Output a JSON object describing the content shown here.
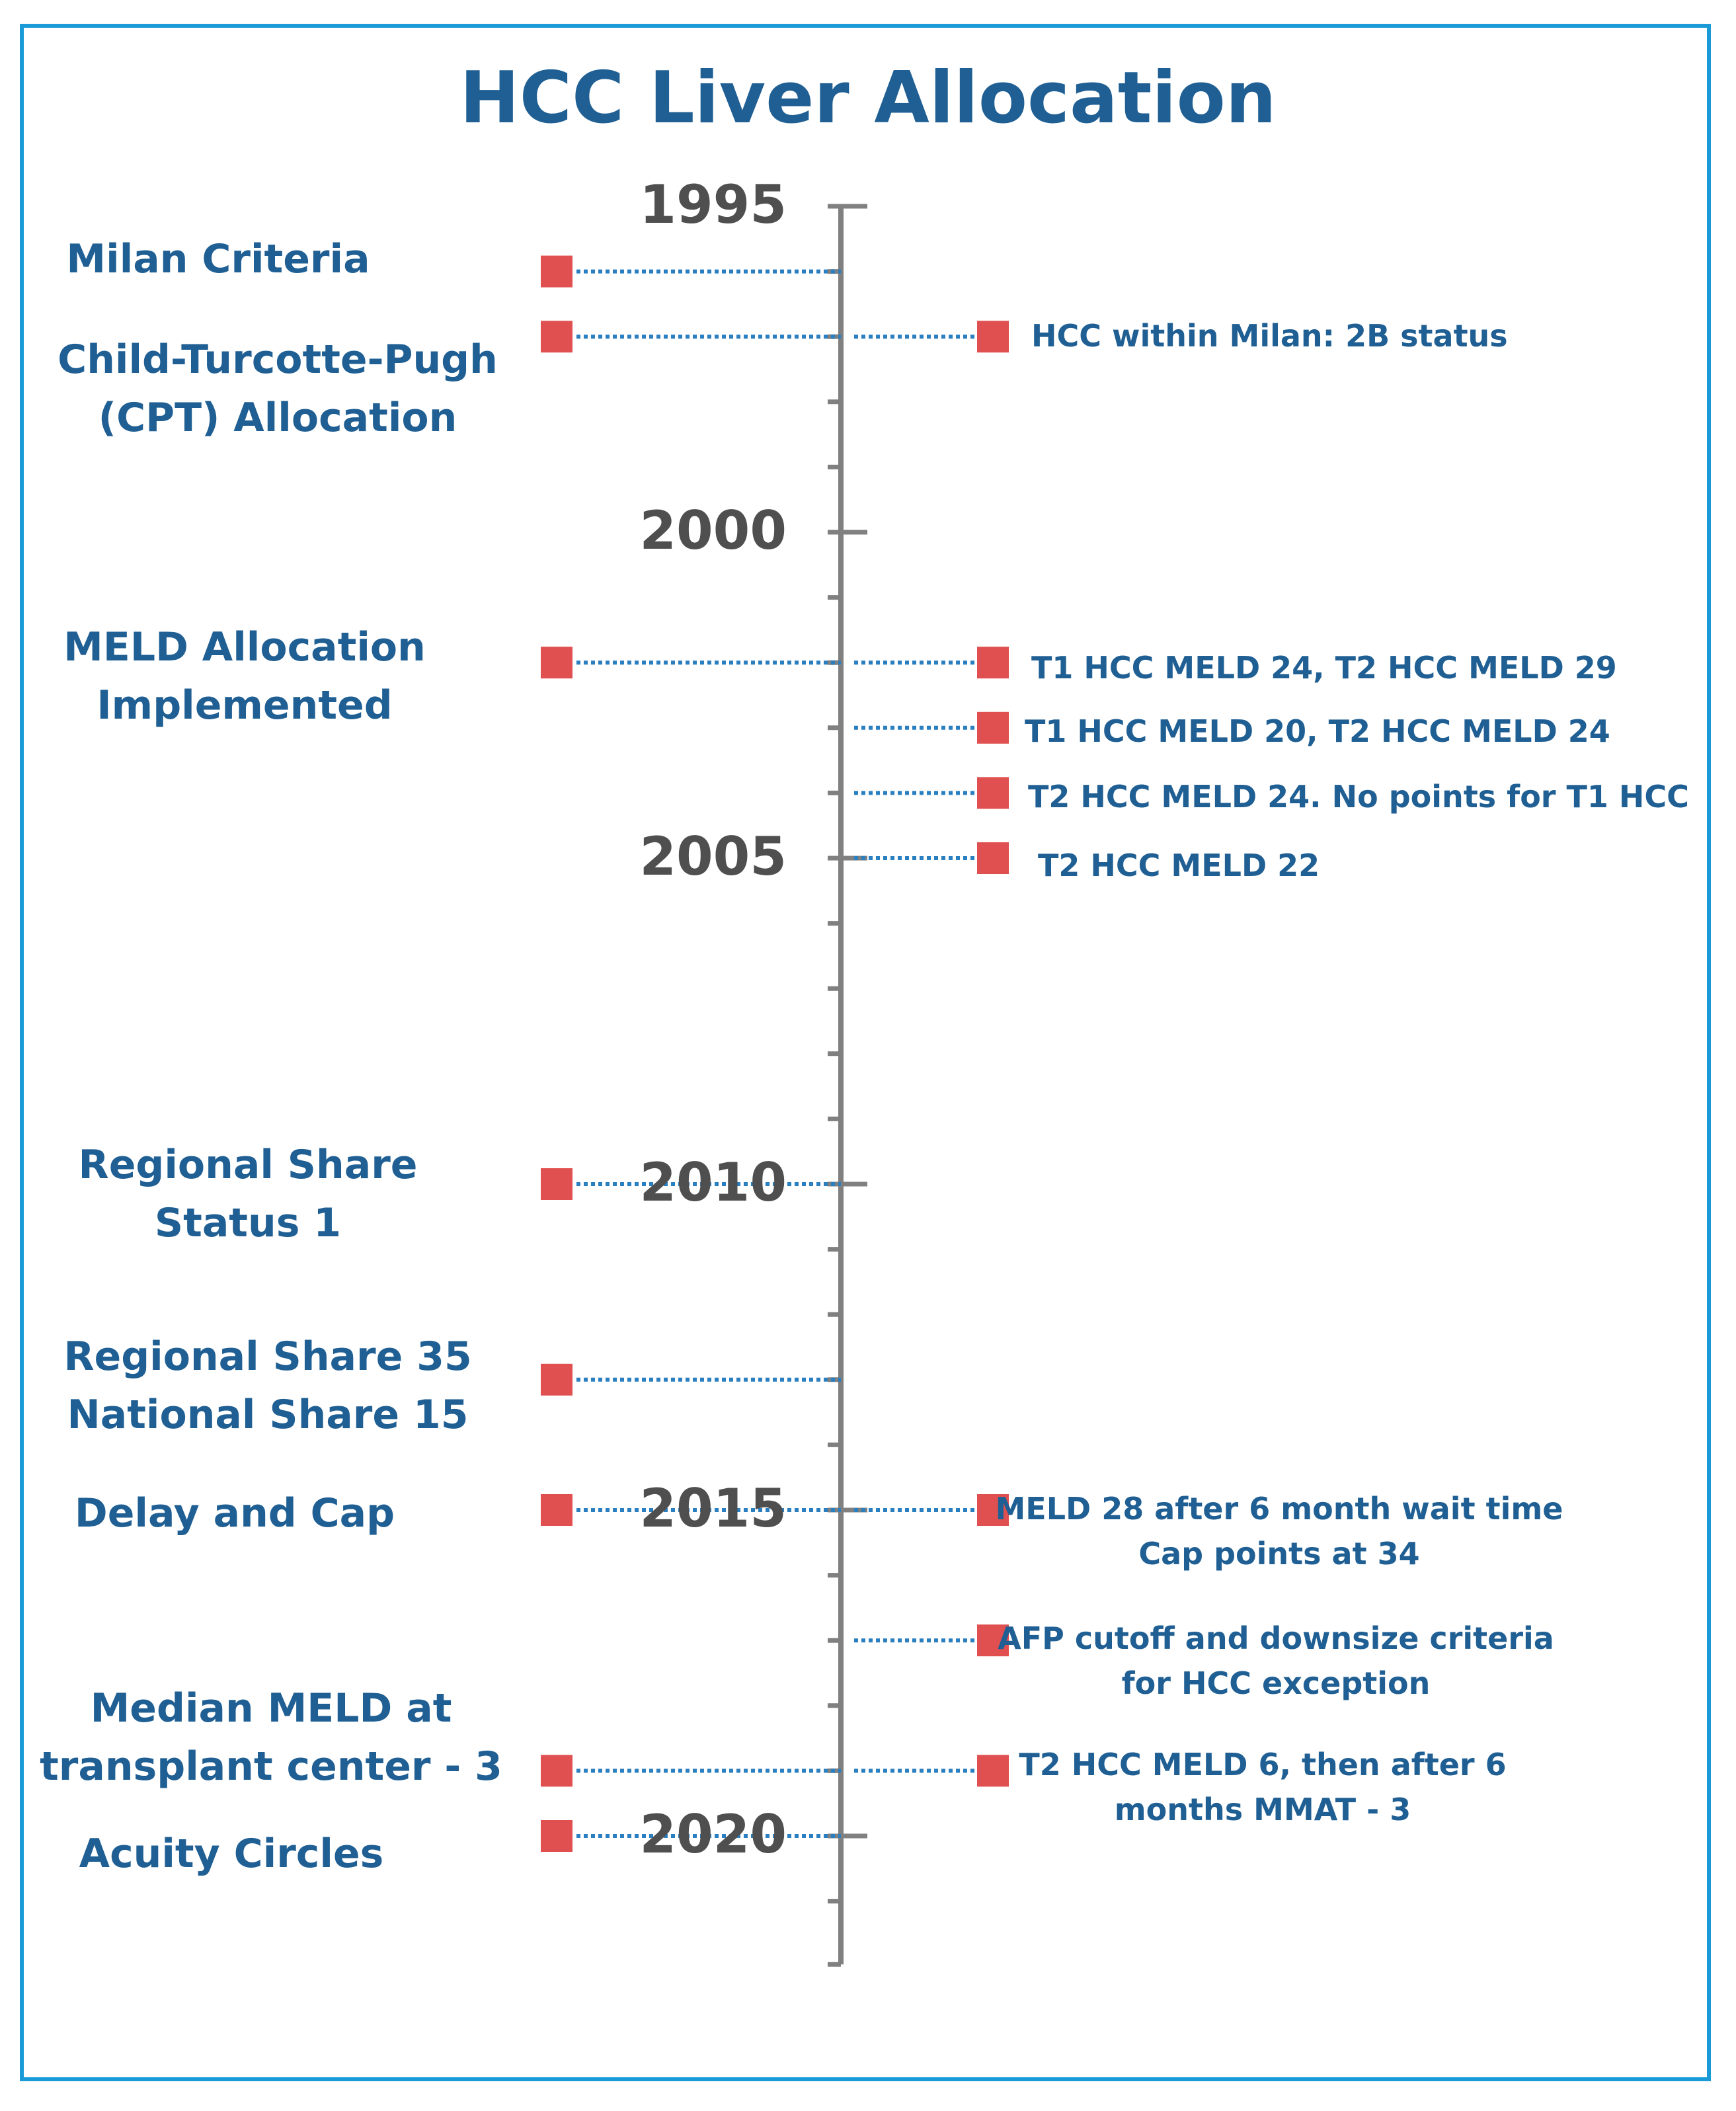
{
  "title": "HCC Liver Allocation",
  "colors": {
    "border": "#1a9bd7",
    "text": "#1f5f93",
    "axis": "#808080",
    "year": "#4f4f4f",
    "marker": "#e05050",
    "dots": "#2a7fc0"
  },
  "axis": {
    "start_year": 1995,
    "end_year": 2021.97,
    "labeled_years": [
      "1995",
      "2000",
      "2005",
      "2010",
      "2015",
      "2020"
    ]
  },
  "left_events": [
    {
      "year": 1996.0,
      "lines": [
        "Milan Criteria"
      ]
    },
    {
      "year": 1997.0,
      "lines": [
        "Child-Turcotte-Pugh",
        "(CPT) Allocation"
      ]
    },
    {
      "year": 2002.0,
      "lines": [
        "MELD Allocation",
        "Implemented"
      ]
    },
    {
      "year": 2010.0,
      "lines": [
        "Regional Share",
        "Status 1"
      ]
    },
    {
      "year": 2013.0,
      "lines": [
        "Regional Share 35",
        "National Share 15"
      ]
    },
    {
      "year": 2015.0,
      "lines": [
        "Delay and Cap"
      ]
    },
    {
      "year": 2019.0,
      "lines": [
        "Median MELD at",
        "transplant center - 3"
      ]
    },
    {
      "year": 2020.0,
      "lines": [
        "Acuity Circles"
      ]
    }
  ],
  "right_events": [
    {
      "year": 1997.0,
      "lines": [
        "HCC within Milan: 2B status"
      ]
    },
    {
      "year": 2002.0,
      "lines": [
        "T1 HCC MELD 24, T2 HCC MELD 29"
      ]
    },
    {
      "year": 2003.0,
      "lines": [
        "T1 HCC MELD 20, T2 HCC MELD 24"
      ]
    },
    {
      "year": 2004.0,
      "lines": [
        "T2 HCC MELD 24. No points for T1 HCC"
      ]
    },
    {
      "year": 2005.0,
      "lines": [
        "T2 HCC MELD 22"
      ]
    },
    {
      "year": 2015.0,
      "lines": [
        "MELD 28 after 6 month wait time",
        "Cap points at 34"
      ]
    },
    {
      "year": 2017.0,
      "lines": [
        "AFP cutoff and downsize criteria",
        "for HCC exception"
      ]
    },
    {
      "year": 2019.0,
      "lines": [
        "T2 HCC MELD 6, then after 6",
        "months MMAT - 3"
      ]
    }
  ]
}
